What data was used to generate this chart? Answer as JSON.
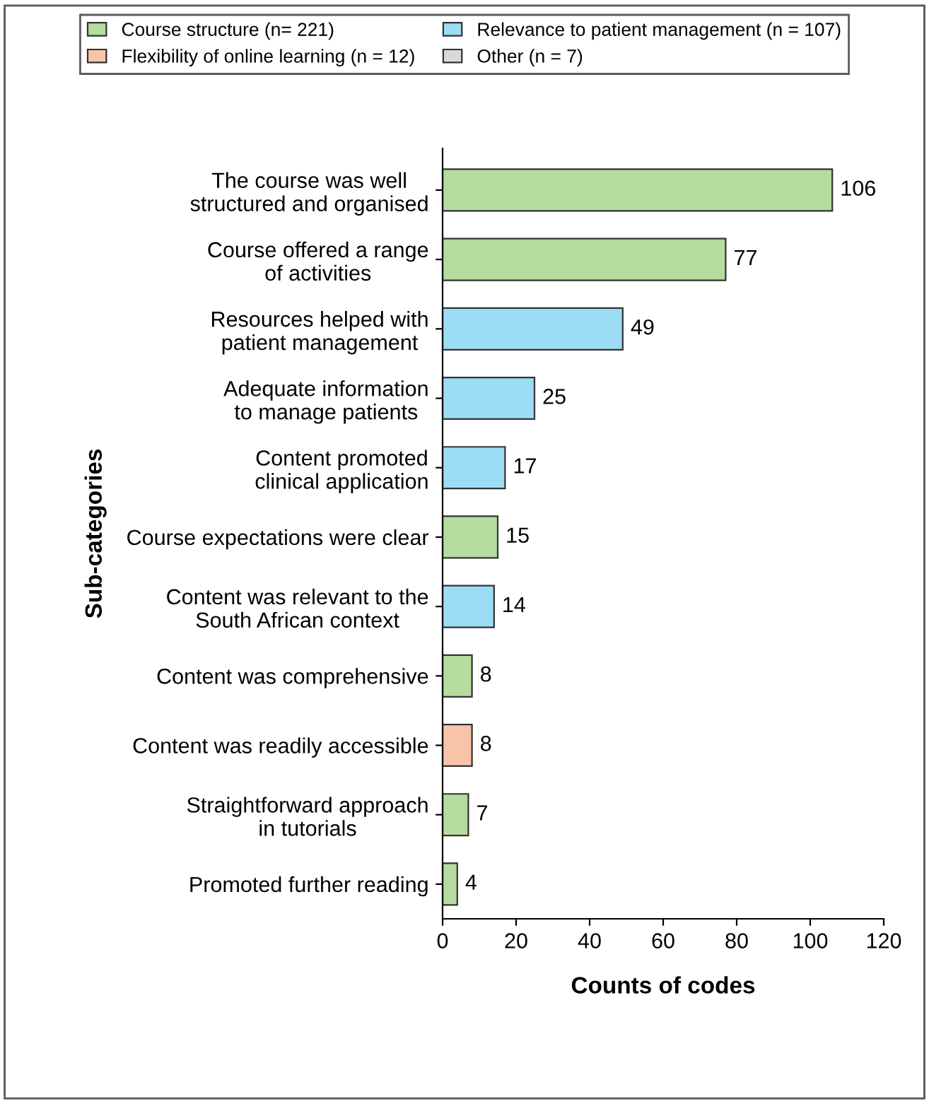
{
  "chart_data": {
    "type": "bar",
    "orientation": "horizontal",
    "xlabel": "Counts of codes",
    "ylabel": "Sub-categories",
    "categories": [
      "The course was well\nstructured and organised",
      "Course offered a range\nof activities",
      "Resources helped with\npatient management",
      "Adequate information\nto manage patients",
      "Content promoted\nclinical application",
      "Course expectations were clear",
      "Content was relevant to the\nSouth African context",
      "Content was comprehensive",
      "Content was readily accessible",
      "Straightforward approach\nin tutorials",
      "Promoted further reading"
    ],
    "series": [
      {
        "name": "Course structure (n= 221)",
        "color": "#b6dca0",
        "values": [
          106,
          77,
          null,
          null,
          null,
          15,
          null,
          8,
          null,
          7,
          4
        ]
      },
      {
        "name": "Relevance to patient management (n = 107)",
        "color": "#9ddcf5",
        "values": [
          null,
          null,
          49,
          25,
          17,
          null,
          14,
          null,
          null,
          null,
          null
        ]
      },
      {
        "name": "Flexibility of online learning (n = 12)",
        "color": "#f7c4aa",
        "values": [
          null,
          null,
          null,
          null,
          null,
          null,
          null,
          null,
          8,
          null,
          null
        ]
      },
      {
        "name": "Other (n = 7)",
        "color": "#d9d9d9",
        "values": [
          null,
          null,
          null,
          null,
          null,
          null,
          null,
          null,
          null,
          null,
          null
        ]
      }
    ],
    "xlim": [
      0,
      120
    ],
    "xticks": [
      0,
      20,
      40,
      60,
      80,
      100,
      120
    ],
    "data_labels": true,
    "legend": "top",
    "grid": false
  }
}
